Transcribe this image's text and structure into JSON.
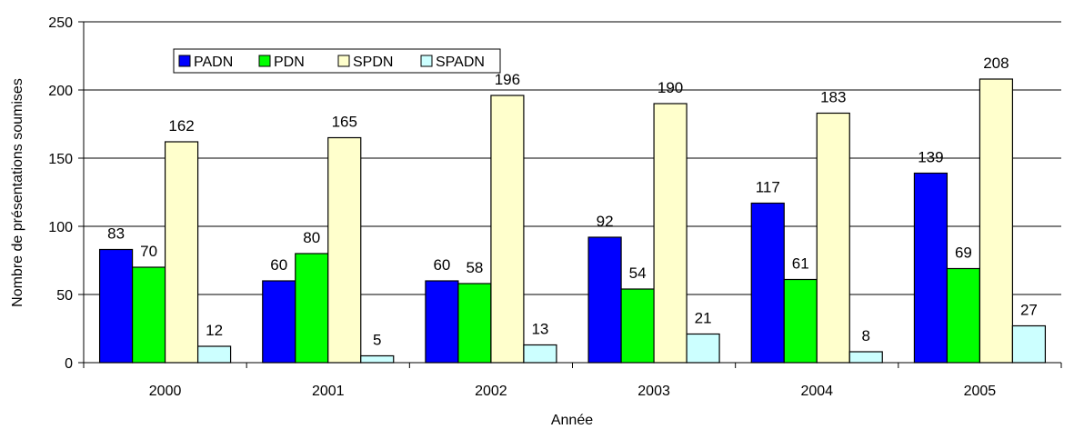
{
  "chart_data": {
    "type": "bar",
    "title": "",
    "xlabel": "Année",
    "ylabel": "Nombre de présentations soumises",
    "ylim": [
      0,
      250
    ],
    "yticks": [
      0,
      50,
      100,
      150,
      200,
      250
    ],
    "grid": true,
    "legend_position": "top-left",
    "categories": [
      "2000",
      "2001",
      "2002",
      "2003",
      "2004",
      "2005"
    ],
    "series": [
      {
        "name": "PADN",
        "color": "#0000FF",
        "values": [
          83,
          60,
          60,
          92,
          117,
          139
        ]
      },
      {
        "name": "PDN",
        "color": "#00FF00",
        "values": [
          70,
          80,
          58,
          54,
          61,
          69
        ]
      },
      {
        "name": "SPDN",
        "color": "#FFFFCC",
        "values": [
          162,
          165,
          196,
          190,
          183,
          208
        ]
      },
      {
        "name": "SPADN",
        "color": "#CCFFFF",
        "values": [
          12,
          5,
          13,
          21,
          8,
          27
        ]
      }
    ]
  }
}
